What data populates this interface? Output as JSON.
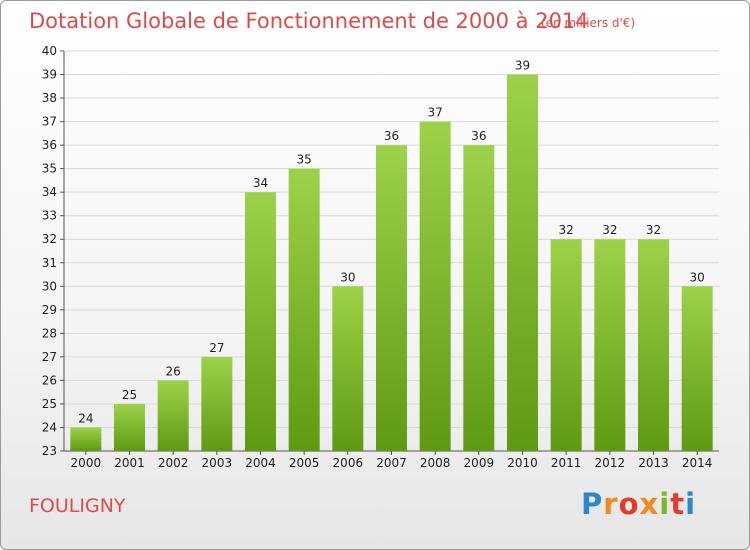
{
  "header": {
    "title": "Dotation Globale de Fonctionnement de 2000 à 2014",
    "unit_note": "(en milliers d'€)"
  },
  "footer": {
    "commune": "FOULIGNY",
    "logo_text": "Proxiti"
  },
  "colors": {
    "title": "#de4a4a",
    "bar_light": "#9dd24a",
    "bar_dark": "#5e9a12",
    "grid": "#d9d9d9"
  },
  "chart_data": {
    "type": "bar",
    "title": "Dotation Globale de Fonctionnement de 2000 à 2014",
    "subtitle": "(en milliers d'€)",
    "xlabel": "",
    "ylabel": "",
    "categories": [
      "2000",
      "2001",
      "2002",
      "2003",
      "2004",
      "2005",
      "2006",
      "2007",
      "2008",
      "2009",
      "2010",
      "2011",
      "2012",
      "2013",
      "2014"
    ],
    "values": [
      24,
      25,
      26,
      27,
      34,
      35,
      30,
      36,
      37,
      36,
      39,
      32,
      32,
      32,
      30
    ],
    "ylim": [
      23,
      40
    ],
    "yticks": [
      23,
      24,
      25,
      26,
      27,
      28,
      29,
      30,
      31,
      32,
      33,
      34,
      35,
      36,
      37,
      38,
      39,
      40
    ],
    "grid": true,
    "legend": "none"
  }
}
